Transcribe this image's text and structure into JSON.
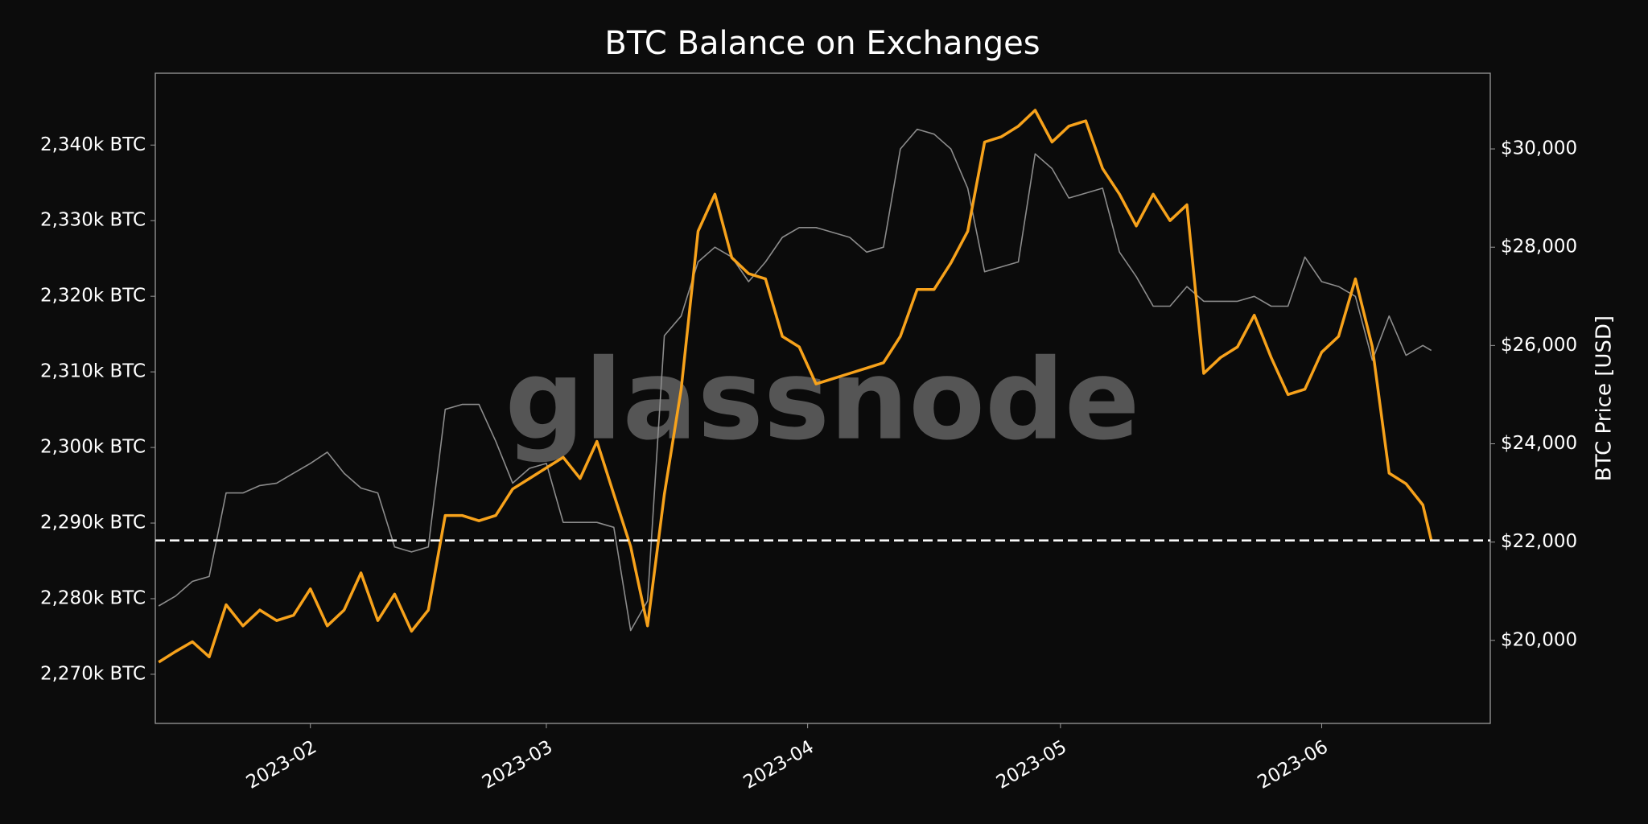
{
  "chart_data": {
    "type": "line",
    "title": "BTC Balance on Exchanges",
    "y2label": "BTC Price [USD]",
    "watermark": "glassnode",
    "x": [
      14,
      16,
      18,
      20,
      22,
      24,
      26,
      28,
      30,
      32,
      34,
      36,
      38,
      40,
      42,
      44,
      46,
      48,
      50,
      52,
      54,
      56,
      58,
      60,
      62,
      64,
      66,
      68,
      70,
      72,
      74,
      76,
      78,
      80,
      82,
      84,
      86,
      88,
      90,
      92,
      94,
      96,
      98,
      100,
      102,
      104,
      106,
      108,
      110,
      112,
      114,
      116,
      118,
      120,
      122,
      124,
      126,
      128,
      130,
      132,
      134,
      136,
      138,
      140,
      142,
      144,
      146,
      148,
      150,
      152,
      154,
      156,
      158,
      160,
      162,
      164,
      165
    ],
    "xlim": [
      13.6,
      172
    ],
    "xticks": [
      {
        "value": 32,
        "label": "2023-02"
      },
      {
        "value": 60,
        "label": "2023-03"
      },
      {
        "value": 91,
        "label": "2023-04"
      },
      {
        "value": 121,
        "label": "2023-05"
      },
      {
        "value": 152,
        "label": "2023-06"
      }
    ],
    "ylim": [
      2263500,
      2349500
    ],
    "yticks": [
      {
        "value": 2270000,
        "label": "2,270k BTC"
      },
      {
        "value": 2280000,
        "label": "2,280k BTC"
      },
      {
        "value": 2290000,
        "label": "2,290k BTC"
      },
      {
        "value": 2300000,
        "label": "2,300k BTC"
      },
      {
        "value": 2310000,
        "label": "2,310k BTC"
      },
      {
        "value": 2320000,
        "label": "2,320k BTC"
      },
      {
        "value": 2330000,
        "label": "2,330k BTC"
      },
      {
        "value": 2340000,
        "label": "2,340k BTC"
      }
    ],
    "y2lim": [
      18310,
      31540
    ],
    "y2ticks": [
      {
        "value": 20000,
        "label": "$20,000"
      },
      {
        "value": 22000,
        "label": "$22,000"
      },
      {
        "value": 24000,
        "label": "$24,000"
      },
      {
        "value": 26000,
        "label": "$26,000"
      },
      {
        "value": 28000,
        "label": "$28,000"
      },
      {
        "value": 30000,
        "label": "$30,000"
      }
    ],
    "hline": 2287700,
    "series": [
      {
        "color": "#8c8c8c",
        "axis": "y2",
        "values": [
          20700,
          20900,
          21200,
          21300,
          23000,
          23000,
          23150,
          23200,
          23400,
          23600,
          23830,
          23400,
          23100,
          23000,
          21900,
          21800,
          21900,
          24700,
          24800,
          24800,
          24050,
          23200,
          23500,
          23600,
          22400,
          22400,
          22400,
          22300,
          20200,
          20800,
          26200,
          26600,
          27700,
          28000,
          27800,
          27300,
          27700,
          28200,
          28400,
          28400,
          28300,
          28200,
          27900,
          28000,
          30000,
          30400,
          30300,
          30000,
          29200,
          27500,
          27600,
          27700,
          29900,
          29600,
          29000,
          29100,
          29200,
          27900,
          27400,
          26800,
          26800,
          27200,
          26900,
          26900,
          26900,
          27000,
          26800,
          26800,
          27800,
          27300,
          27200,
          27000,
          25700,
          26600,
          25800,
          26000,
          25900
        ]
      },
      {
        "color": "#f7a21b",
        "values": [
          2271600,
          2273000,
          2274300,
          2272300,
          2279200,
          2276400,
          2278500,
          2277100,
          2277800,
          2281300,
          2276400,
          2278500,
          2283400,
          2277100,
          2280600,
          2275700,
          2278500,
          2291000,
          2291000,
          2290300,
          2291000,
          2294500,
          2295900,
          2297300,
          2298700,
          2295900,
          2300800,
          2293800,
          2286900,
          2276400,
          2293800,
          2307700,
          2328600,
          2333500,
          2325100,
          2323000,
          2322300,
          2314700,
          2313300,
          2308400,
          2309100,
          2309800,
          2310500,
          2311200,
          2314700,
          2320900,
          2320900,
          2324400,
          2328600,
          2340400,
          2341100,
          2342500,
          2344600,
          2340400,
          2342500,
          2343200,
          2336900,
          2333500,
          2329300,
          2333500,
          2330000,
          2332100,
          2309800,
          2311900,
          2313300,
          2317500,
          2311900,
          2307000,
          2307700,
          2312600,
          2314700,
          2322300,
          2313300,
          2296600,
          2295200,
          2292400,
          2287700
        ]
      }
    ]
  }
}
